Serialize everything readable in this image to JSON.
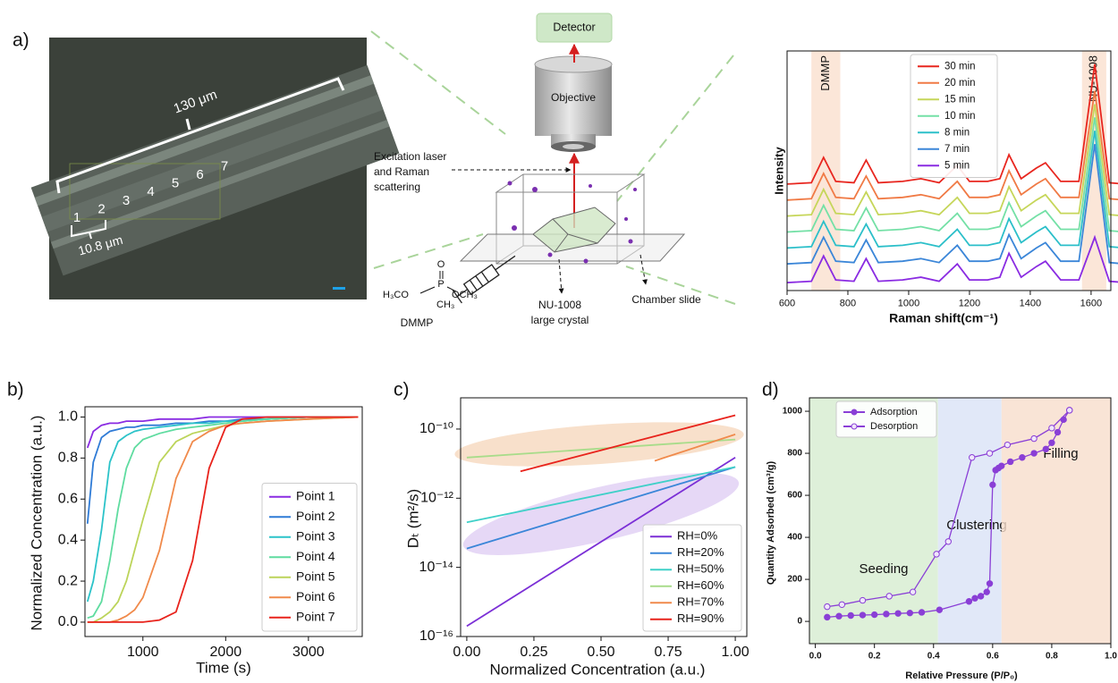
{
  "panel_labels": [
    "a)",
    "b)",
    "c)",
    "d)"
  ],
  "micrograph": {
    "length_label": "130 μm",
    "width_label": "10.8 μm",
    "points": [
      "1",
      "2",
      "3",
      "4",
      "5",
      "6",
      "7"
    ]
  },
  "diagram": {
    "detector": "Detector",
    "objective": "Objective",
    "laser": [
      "Excitation laser",
      "and Raman",
      "scattering"
    ],
    "crystal": [
      "NU-1008",
      "large crystal"
    ],
    "slide": "Chamber slide",
    "molecule": "DMMP",
    "formula": {
      "o": "O",
      "p": "P",
      "h3co": "H₃CO",
      "och3": "OCH₃",
      "ch3": "CH₃"
    }
  },
  "chart_data": [
    {
      "type": "line",
      "xlabel": "Raman shift(cm⁻¹)",
      "ylabel": "Intensity",
      "x": [
        600,
        680,
        720,
        760,
        820,
        860,
        900,
        980,
        1040,
        1100,
        1160,
        1200,
        1260,
        1300,
        1330,
        1370,
        1420,
        1450,
        1500,
        1560,
        1612,
        1660,
        1710
      ],
      "xlim": [
        600,
        1665
      ],
      "xticks": [
        600,
        800,
        1000,
        1200,
        1400,
        1600
      ],
      "ylim": [
        0,
        9
      ],
      "legend": "upper center",
      "bands": [
        {
          "label": "DMMP",
          "range": [
            680,
            775
          ],
          "color": "#f7d2b8"
        },
        {
          "label": "NU-1008",
          "range": [
            1570,
            1650
          ],
          "color": "#f7d2b8"
        }
      ],
      "series": [
        {
          "name": "30 min",
          "color": "#e8261f",
          "values": [
            4.0,
            4.05,
            5.0,
            4.1,
            4.05,
            4.9,
            4.05,
            4.1,
            4.2,
            4.05,
            4.7,
            4.1,
            4.1,
            4.2,
            5.1,
            4.2,
            4.6,
            4.8,
            4.1,
            4.1,
            8.5,
            4.05,
            4.0
          ]
        },
        {
          "name": "20 min",
          "color": "#f07a45",
          "values": [
            3.4,
            3.45,
            4.4,
            3.5,
            3.45,
            4.3,
            3.45,
            3.5,
            3.6,
            3.45,
            4.1,
            3.5,
            3.5,
            3.6,
            4.5,
            3.6,
            4.0,
            4.2,
            3.5,
            3.5,
            7.5,
            3.45,
            3.4
          ]
        },
        {
          "name": "15 min",
          "color": "#c6d65a",
          "values": [
            2.8,
            2.85,
            3.8,
            2.9,
            2.85,
            3.7,
            2.85,
            2.9,
            3.0,
            2.85,
            3.5,
            2.9,
            2.9,
            3.0,
            3.9,
            3.0,
            3.4,
            3.6,
            2.9,
            2.9,
            7.0,
            2.85,
            2.8
          ]
        },
        {
          "name": "10 min",
          "color": "#74e0a6",
          "values": [
            2.2,
            2.25,
            3.2,
            2.3,
            2.25,
            3.1,
            2.25,
            2.3,
            2.4,
            2.25,
            2.9,
            2.3,
            2.3,
            2.4,
            3.3,
            2.4,
            2.8,
            3.0,
            2.3,
            2.3,
            6.5,
            2.25,
            2.2
          ]
        },
        {
          "name": "8 min",
          "color": "#2bbfc9",
          "values": [
            1.6,
            1.65,
            2.6,
            1.7,
            1.65,
            2.5,
            1.65,
            1.7,
            1.8,
            1.65,
            2.3,
            1.7,
            1.7,
            1.8,
            2.7,
            1.8,
            2.2,
            2.4,
            1.7,
            1.7,
            6.0,
            1.65,
            1.6
          ]
        },
        {
          "name": "7 min",
          "color": "#3b86d8",
          "values": [
            1.0,
            1.05,
            2.0,
            1.1,
            1.05,
            1.9,
            1.05,
            1.1,
            1.2,
            1.05,
            1.7,
            1.1,
            1.1,
            1.2,
            2.1,
            1.2,
            1.6,
            1.8,
            1.1,
            1.1,
            5.5,
            1.05,
            1.0
          ]
        },
        {
          "name": "5 min",
          "color": "#8a2be2",
          "values": [
            0.3,
            0.35,
            1.3,
            0.4,
            0.35,
            1.2,
            0.35,
            0.4,
            0.5,
            0.35,
            1.0,
            0.4,
            0.4,
            0.5,
            1.4,
            0.5,
            0.9,
            1.1,
            0.4,
            0.4,
            2.0,
            0.35,
            0.3
          ]
        }
      ]
    },
    {
      "type": "line",
      "xlabel": "Time (s)",
      "ylabel": "Normalized Concentration (a.u.)",
      "x": [
        330,
        400,
        500,
        600,
        700,
        800,
        900,
        1000,
        1200,
        1400,
        1600,
        1800,
        2000,
        2200,
        2500,
        3000,
        3600
      ],
      "xlim": [
        300,
        3650
      ],
      "xticks": [
        1000,
        2000,
        3000
      ],
      "ylim": [
        -0.07,
        1.05
      ],
      "yticks": [
        {
          "value": 0,
          "label": "0.0"
        },
        0.2,
        0.4,
        0.6,
        0.8,
        {
          "value": 1,
          "label": "1.0"
        }
      ],
      "legend": "lower right",
      "series": [
        {
          "name": "Point 1",
          "color": "#8a2be2",
          "values": [
            0.85,
            0.93,
            0.96,
            0.97,
            0.97,
            0.98,
            0.98,
            0.98,
            0.99,
            0.99,
            0.99,
            1.0,
            1.0,
            1.0,
            1.0,
            1.0,
            1.0
          ]
        },
        {
          "name": "Point 2",
          "color": "#2f7bd6",
          "values": [
            0.48,
            0.78,
            0.9,
            0.93,
            0.94,
            0.95,
            0.95,
            0.96,
            0.96,
            0.97,
            0.97,
            0.98,
            0.98,
            0.99,
            0.99,
            1.0,
            1.0
          ]
        },
        {
          "name": "Point 3",
          "color": "#2cc3c9",
          "values": [
            0.1,
            0.2,
            0.45,
            0.78,
            0.88,
            0.91,
            0.93,
            0.94,
            0.95,
            0.96,
            0.97,
            0.97,
            0.98,
            0.98,
            0.99,
            1.0,
            1.0
          ]
        },
        {
          "name": "Point 4",
          "color": "#5fdca0",
          "values": [
            0.02,
            0.03,
            0.1,
            0.3,
            0.55,
            0.75,
            0.85,
            0.89,
            0.92,
            0.94,
            0.95,
            0.96,
            0.97,
            0.98,
            0.99,
            1.0,
            1.0
          ]
        },
        {
          "name": "Point 5",
          "color": "#bcd45a",
          "values": [
            0,
            0,
            0.02,
            0.05,
            0.1,
            0.2,
            0.35,
            0.5,
            0.78,
            0.88,
            0.92,
            0.94,
            0.96,
            0.97,
            0.98,
            0.99,
            1.0
          ]
        },
        {
          "name": "Point 6",
          "color": "#f08a4b",
          "values": [
            0,
            0,
            0,
            0,
            0.01,
            0.03,
            0.06,
            0.12,
            0.35,
            0.7,
            0.88,
            0.93,
            0.96,
            0.97,
            0.98,
            0.99,
            1.0
          ]
        },
        {
          "name": "Point 7",
          "color": "#e8231c",
          "values": [
            0,
            0,
            0,
            0,
            0,
            0,
            0,
            0,
            0.01,
            0.05,
            0.3,
            0.75,
            0.95,
            0.99,
            1.0,
            1.0,
            1.0
          ]
        }
      ]
    },
    {
      "type": "line",
      "log_y": true,
      "xlabel": "Normalized Concentration (a.u.)",
      "ylabel": "Dₜ (m²/s)",
      "xlim": [
        -0.023,
        1.043
      ],
      "xticks": [
        {
          "value": 0,
          "label": "0.00"
        },
        0.25,
        {
          "value": 0.5,
          "label": "0.50"
        },
        0.75,
        {
          "value": 1,
          "label": "1.00"
        }
      ],
      "ylim": [
        1e-16,
        8e-10
      ],
      "yticks": [
        {
          "value": 1e-16,
          "label": "10⁻¹⁶"
        },
        {
          "value": 1e-14,
          "label": "10⁻¹⁴"
        },
        {
          "value": 1e-12,
          "label": "10⁻¹²"
        },
        {
          "value": 1e-10,
          "label": "10⁻¹⁰"
        }
      ],
      "legend": "lower right",
      "series": [
        {
          "name": "RH=0%",
          "color": "#7b2fd6",
          "x": [
            0,
            1
          ],
          "values": [
            2e-16,
            1.5e-11
          ]
        },
        {
          "name": "RH=20%",
          "color": "#3a86d8",
          "x": [
            0,
            1
          ],
          "values": [
            3.5e-14,
            8e-12
          ]
        },
        {
          "name": "RH=50%",
          "color": "#3fd0c8",
          "x": [
            0,
            1
          ],
          "values": [
            2e-13,
            8e-12
          ]
        },
        {
          "name": "RH=60%",
          "color": "#a8dc8a",
          "x": [
            0,
            1
          ],
          "values": [
            1.5e-11,
            5e-11
          ]
        },
        {
          "name": "RH=70%",
          "color": "#f08a4b",
          "x": [
            0.7,
            1
          ],
          "values": [
            1.2e-11,
            7e-11
          ]
        },
        {
          "name": "RH=90%",
          "color": "#e8231c",
          "x": [
            0.2,
            1
          ],
          "values": [
            6e-12,
            2.5e-10
          ]
        }
      ]
    },
    {
      "type": "line",
      "markers": true,
      "xlabel": "Relative Pressure (P/P₀)",
      "ylabel": "Quantity Adsorbed (cm³/g)",
      "xlim": [
        -0.02,
        1.0
      ],
      "xticks": [
        {
          "value": 0,
          "label": "0.0"
        },
        0.2,
        0.4,
        0.6,
        0.8,
        {
          "value": 1,
          "label": "1.0"
        }
      ],
      "ylim": [
        -106,
        1064
      ],
      "yticks": [
        0,
        200,
        400,
        600,
        800,
        1000
      ],
      "legend": "upper left",
      "regions": [
        {
          "label": "Seeding",
          "range": [
            -0.02,
            0.415
          ],
          "color": "#d6ecd0"
        },
        {
          "label": "Clustering",
          "range": [
            0.415,
            0.63
          ],
          "color": "#d9e2f6"
        },
        {
          "label": "Filling",
          "range": [
            0.63,
            1.0
          ],
          "color": "#f8ddcc"
        }
      ],
      "series": [
        {
          "name": "Adsorption",
          "color": "#8a3fd6",
          "marker": "filled",
          "x": [
            0.04,
            0.08,
            0.12,
            0.16,
            0.2,
            0.24,
            0.28,
            0.32,
            0.36,
            0.42,
            0.52,
            0.54,
            0.56,
            0.58,
            0.59,
            0.6,
            0.61,
            0.62,
            0.63,
            0.66,
            0.7,
            0.74,
            0.78,
            0.8,
            0.82,
            0.84,
            0.86
          ],
          "values": [
            20,
            25,
            28,
            30,
            32,
            35,
            38,
            40,
            43,
            55,
            95,
            110,
            120,
            140,
            180,
            650,
            720,
            730,
            740,
            760,
            780,
            800,
            820,
            850,
            900,
            960,
            1005
          ]
        },
        {
          "name": "Desorption",
          "color": "#8a3fd6",
          "marker": "open",
          "x": [
            0.04,
            0.09,
            0.16,
            0.25,
            0.33,
            0.41,
            0.45,
            0.53,
            0.59,
            0.65,
            0.74,
            0.8,
            0.86
          ],
          "values": [
            70,
            80,
            100,
            120,
            140,
            320,
            380,
            780,
            800,
            840,
            870,
            920,
            1005
          ]
        }
      ]
    }
  ]
}
